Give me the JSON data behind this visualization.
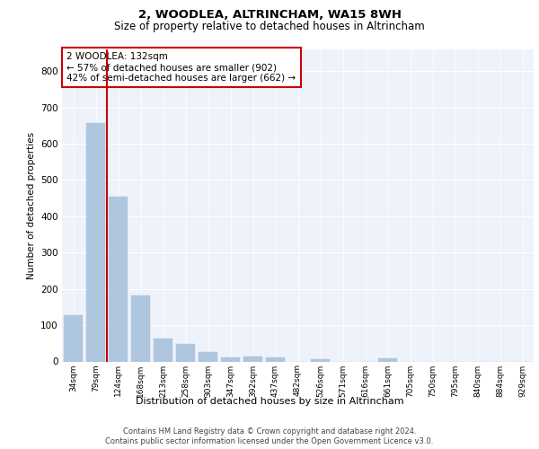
{
  "title1": "2, WOODLEA, ALTRINCHAM, WA15 8WH",
  "title2": "Size of property relative to detached houses in Altrincham",
  "xlabel": "Distribution of detached houses by size in Altrincham",
  "ylabel": "Number of detached properties",
  "categories": [
    "34sqm",
    "79sqm",
    "124sqm",
    "168sqm",
    "213sqm",
    "258sqm",
    "303sqm",
    "347sqm",
    "392sqm",
    "437sqm",
    "482sqm",
    "526sqm",
    "571sqm",
    "616sqm",
    "661sqm",
    "705sqm",
    "750sqm",
    "795sqm",
    "840sqm",
    "884sqm",
    "929sqm"
  ],
  "values": [
    128,
    658,
    453,
    183,
    63,
    48,
    25,
    11,
    13,
    12,
    0,
    6,
    0,
    0,
    8,
    0,
    0,
    0,
    0,
    0,
    0
  ],
  "bar_color": "#aec6de",
  "bar_edgecolor": "#aec6de",
  "vline_color": "#cc0000",
  "annotation_text": "2 WOODLEA: 132sqm\n← 57% of detached houses are smaller (902)\n42% of semi-detached houses are larger (662) →",
  "annotation_box_color": "#ffffff",
  "annotation_box_edgecolor": "#cc0000",
  "ylim": [
    0,
    860
  ],
  "yticks": [
    0,
    100,
    200,
    300,
    400,
    500,
    600,
    700,
    800
  ],
  "background_color": "#eef2fa",
  "footer_line1": "Contains HM Land Registry data © Crown copyright and database right 2024.",
  "footer_line2": "Contains public sector information licensed under the Open Government Licence v3.0."
}
